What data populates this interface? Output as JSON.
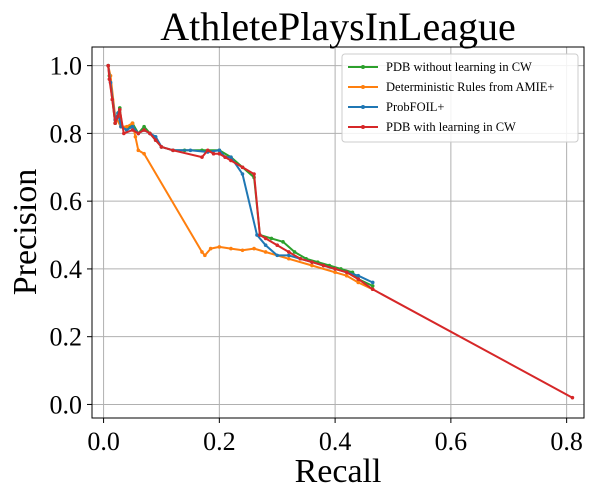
{
  "chart_data": {
    "type": "line",
    "title": "AthletePlaysInLeague",
    "xlabel": "Recall",
    "ylabel": "Precision",
    "xlim": [
      -0.02,
      0.83
    ],
    "ylim": [
      -0.04,
      1.055
    ],
    "xticks": [
      0.0,
      0.2,
      0.4,
      0.6,
      0.8
    ],
    "yticks": [
      0.0,
      0.2,
      0.4,
      0.6,
      0.8,
      1.0
    ],
    "xtick_labels": [
      "0.0",
      "0.2",
      "0.4",
      "0.6",
      "0.8"
    ],
    "ytick_labels": [
      "0.0",
      "0.2",
      "0.4",
      "0.6",
      "0.8",
      "1.0"
    ],
    "grid": true,
    "legend_position": "top-right",
    "series": [
      {
        "name": "PDB without learning in CW",
        "color": "#2ca02c",
        "x": [
          0.008,
          0.01,
          0.015,
          0.02,
          0.025,
          0.028,
          0.032,
          0.04,
          0.05,
          0.06,
          0.07,
          0.08,
          0.09,
          0.1,
          0.12,
          0.14,
          0.17,
          0.2,
          0.22,
          0.24,
          0.26,
          0.27,
          0.29,
          0.31,
          0.33,
          0.35,
          0.37,
          0.39,
          0.41,
          0.43,
          0.44,
          0.465
        ],
        "y": [
          1.0,
          0.97,
          0.9,
          0.83,
          0.86,
          0.875,
          0.82,
          0.81,
          0.83,
          0.8,
          0.82,
          0.8,
          0.78,
          0.76,
          0.75,
          0.75,
          0.75,
          0.75,
          0.73,
          0.7,
          0.67,
          0.5,
          0.49,
          0.48,
          0.45,
          0.43,
          0.42,
          0.41,
          0.4,
          0.39,
          0.37,
          0.35
        ]
      },
      {
        "name": "Deterministic Rules from AMIE+",
        "color": "#ff7f0e",
        "x": [
          0.008,
          0.012,
          0.02,
          0.03,
          0.04,
          0.05,
          0.055,
          0.06,
          0.07,
          0.17,
          0.175,
          0.185,
          0.2,
          0.22,
          0.24,
          0.26,
          0.28,
          0.32,
          0.36,
          0.4,
          0.42,
          0.44,
          0.465
        ],
        "y": [
          1.0,
          0.97,
          0.85,
          0.82,
          0.82,
          0.83,
          0.79,
          0.75,
          0.74,
          0.45,
          0.44,
          0.46,
          0.465,
          0.46,
          0.455,
          0.46,
          0.45,
          0.43,
          0.41,
          0.39,
          0.38,
          0.36,
          0.34
        ]
      },
      {
        "name": "ProbFOIL+",
        "color": "#1f77b4",
        "x": [
          0.008,
          0.012,
          0.02,
          0.025,
          0.03,
          0.04,
          0.05,
          0.06,
          0.07,
          0.08,
          0.09,
          0.1,
          0.12,
          0.15,
          0.18,
          0.2,
          0.21,
          0.22,
          0.24,
          0.265,
          0.28,
          0.3,
          0.32,
          0.34,
          0.36,
          0.38,
          0.4,
          0.42,
          0.44,
          0.465
        ],
        "y": [
          1.0,
          0.95,
          0.84,
          0.86,
          0.82,
          0.81,
          0.82,
          0.8,
          0.81,
          0.8,
          0.79,
          0.76,
          0.75,
          0.75,
          0.745,
          0.75,
          0.73,
          0.73,
          0.68,
          0.5,
          0.47,
          0.44,
          0.44,
          0.43,
          0.42,
          0.41,
          0.4,
          0.39,
          0.38,
          0.36
        ]
      },
      {
        "name": "PDB with learning in CW",
        "color": "#d62728",
        "x": [
          0.008,
          0.01,
          0.015,
          0.02,
          0.025,
          0.028,
          0.035,
          0.05,
          0.06,
          0.07,
          0.08,
          0.09,
          0.1,
          0.12,
          0.17,
          0.18,
          0.19,
          0.2,
          0.21,
          0.22,
          0.24,
          0.26,
          0.27,
          0.28,
          0.3,
          0.32,
          0.34,
          0.36,
          0.38,
          0.4,
          0.42,
          0.44,
          0.465,
          0.81
        ],
        "y": [
          1.0,
          0.96,
          0.9,
          0.83,
          0.85,
          0.87,
          0.8,
          0.81,
          0.8,
          0.81,
          0.8,
          0.78,
          0.76,
          0.75,
          0.73,
          0.75,
          0.74,
          0.74,
          0.73,
          0.72,
          0.7,
          0.68,
          0.5,
          0.49,
          0.47,
          0.45,
          0.43,
          0.42,
          0.41,
          0.4,
          0.39,
          0.37,
          0.34,
          0.02
        ]
      }
    ]
  }
}
